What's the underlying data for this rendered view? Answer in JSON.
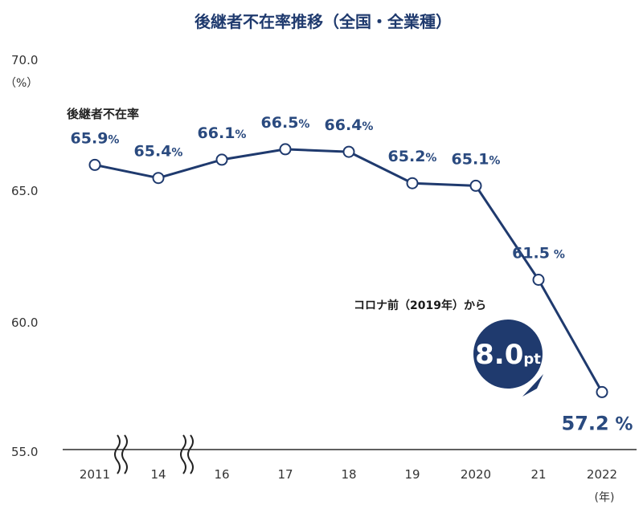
{
  "chart_data": {
    "type": "line",
    "title": "後継者不在率推移（全国・全業種）",
    "series_name": "後継者不在率",
    "categories": [
      "2011",
      "14",
      "16",
      "17",
      "18",
      "19",
      "2020",
      "21",
      "2022"
    ],
    "values": [
      65.9,
      65.4,
      66.1,
      66.5,
      66.4,
      65.2,
      65.1,
      61.5,
      57.2
    ],
    "y_ticks": [
      "70.0",
      "65.0",
      "60.0",
      "55.0"
    ],
    "ylim": [
      55.0,
      70.0
    ],
    "y_unit": "（%）",
    "x_unit": "(年)",
    "percent_sign": "%",
    "annotation": {
      "text": "コロナ前（2019年）から",
      "badge_value": "8.0",
      "badge_unit": "pt"
    },
    "colors": {
      "line": "#1f3a6e",
      "text": "#2a4a7f",
      "badge": "#1f3a6e"
    }
  }
}
